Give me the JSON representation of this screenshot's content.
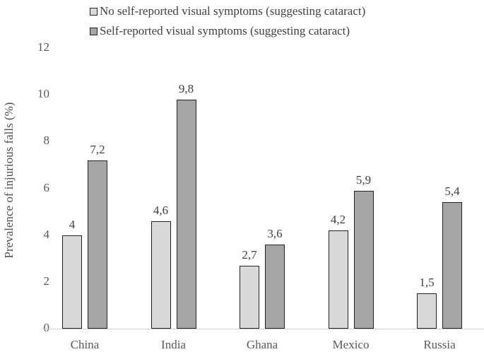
{
  "chart_data": {
    "type": "bar",
    "title": "",
    "xlabel": "",
    "ylabel": "Prevalence of injurious falls (%)",
    "ylim": [
      0,
      12
    ],
    "yticks": [
      "0",
      "2",
      "4",
      "6",
      "8",
      "10",
      "12"
    ],
    "grid": false,
    "legend_position": "top",
    "categories": [
      "China",
      "India",
      "Ghana",
      "Mexico",
      "Russia"
    ],
    "series": [
      {
        "name": "No self-reported visual symptoms (suggesting cataract)",
        "color": "#d9d9d9",
        "values": [
          4,
          4.6,
          2.7,
          4.2,
          1.5
        ],
        "labels": [
          "4",
          "4,6",
          "2,7",
          "4,2",
          "1,5"
        ]
      },
      {
        "name": "Self-reported visual symptoms (suggesting cataract)",
        "color": "#a5a5a5",
        "values": [
          7.2,
          9.8,
          3.6,
          5.9,
          5.4
        ],
        "labels": [
          "7,2",
          "9,8",
          "3,6",
          "5,9",
          "5,4"
        ]
      }
    ]
  }
}
